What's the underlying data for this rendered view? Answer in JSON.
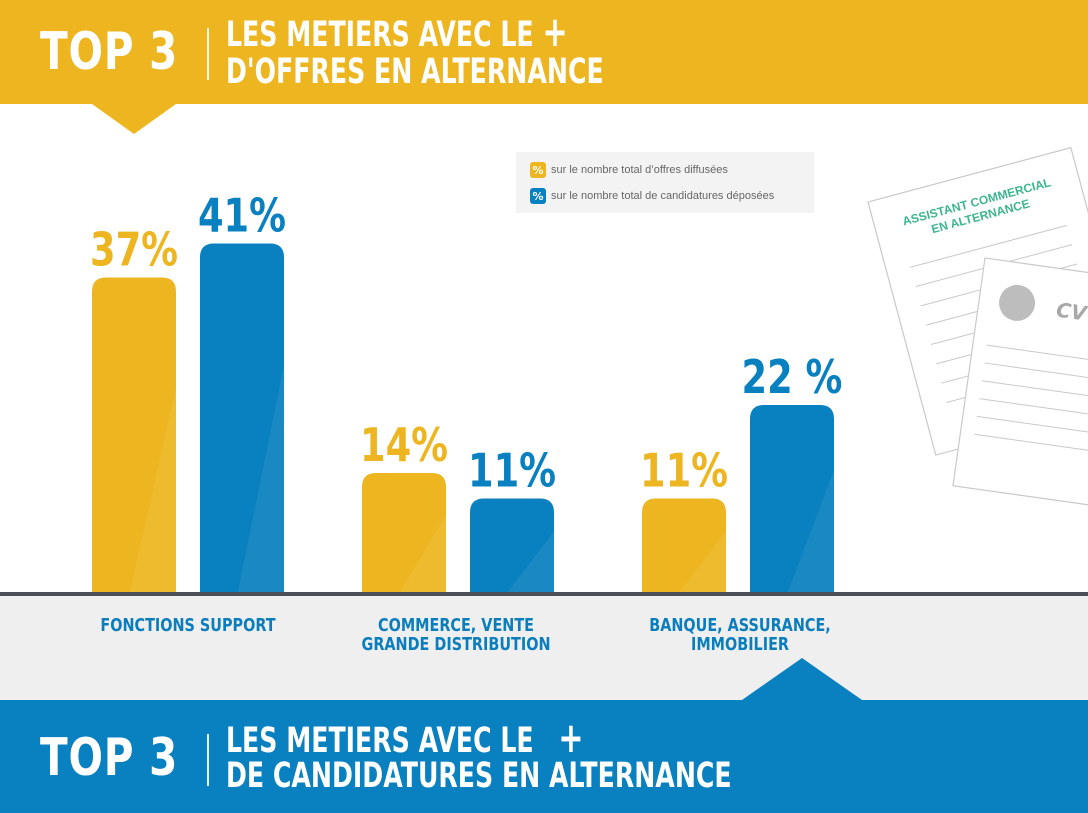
{
  "top_banner": {
    "top3": "TOP 3",
    "line1": "LES METIERS AVEC LE",
    "plus": "+",
    "line2": "D'OFFRES EN ALTERNANCE",
    "color": "#EDB620"
  },
  "bottom_banner": {
    "top3": "TOP 3",
    "line1": "LES METIERS AVEC LE",
    "plus": "+",
    "line2": "DE CANDIDATURES EN ALTERNANCE",
    "color": "#0980BF"
  },
  "legend": {
    "symbol": "%",
    "items": [
      {
        "text": "sur le nombre total d’offres diffusées",
        "color": "#EDB620"
      },
      {
        "text": "sur le nombre total de candidatures déposées",
        "color": "#0980BF"
      }
    ]
  },
  "illustration": {
    "doc1_title_line1": "ASSISTANT COMMERCIAL",
    "doc1_title_line2": "EN ALTERNANCE",
    "doc2_title": "CV"
  },
  "chart_data": {
    "type": "bar",
    "categories": [
      "FONCTIONS SUPPORT",
      "COMMERCE, VENTE\nGRANDE DISTRIBUTION",
      "BANQUE, ASSURANCE,\nIMMOBILIER"
    ],
    "series": [
      {
        "name": "sur le nombre total d’offres diffusées",
        "values": [
          37,
          14,
          11
        ],
        "labels": [
          "37%",
          "14%",
          "11%"
        ],
        "color": "#EDB620"
      },
      {
        "name": "sur le nombre total de candidatures déposées",
        "values": [
          41,
          11,
          22
        ],
        "labels": [
          "41%",
          "11%",
          "22 %"
        ],
        "color": "#0980BF"
      }
    ],
    "unit": "%",
    "grid": false,
    "legend_position": "top-right"
  }
}
